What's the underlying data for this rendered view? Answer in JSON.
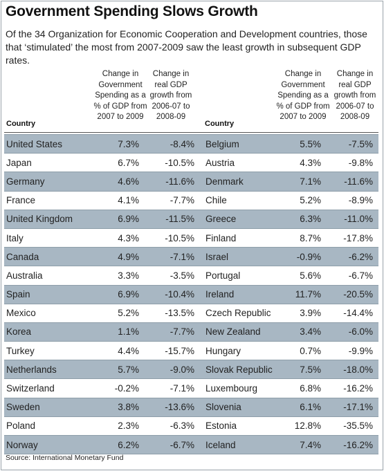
{
  "title": "Government Spending Slows Growth",
  "subtitle": "Of the 34 Organization for Economic Cooperation and Development countries, those that ‘stimulated’ the most from 2007-2009 saw the least growth in subsequent GDP rates.",
  "columns": {
    "country": "Country",
    "spending_lines": [
      "Change in",
      "Government",
      "Spending as a",
      "% of GDP from",
      "2007 to 2009"
    ],
    "gdp_lines": [
      "Change in",
      "real GDP",
      "growth from",
      "2006-07 to",
      "2008-09"
    ]
  },
  "source": "Source: International Monetary Fund",
  "chart_data": {
    "type": "table",
    "title": "Government Spending Slows Growth",
    "columns": [
      "Country",
      "Change in Government Spending as a % of GDP from 2007 to 2009",
      "Change in real GDP growth from 2006-07 to 2008-09"
    ],
    "left": [
      {
        "country": "United States",
        "spending": "7.3%",
        "gdp": "-8.4%"
      },
      {
        "country": "Japan",
        "spending": "6.7%",
        "gdp": "-10.5%"
      },
      {
        "country": "Germany",
        "spending": "4.6%",
        "gdp": "-11.6%"
      },
      {
        "country": "France",
        "spending": "4.1%",
        "gdp": "-7.7%"
      },
      {
        "country": "United Kingdom",
        "spending": "6.9%",
        "gdp": "-11.5%"
      },
      {
        "country": "Italy",
        "spending": "4.3%",
        "gdp": "-10.5%"
      },
      {
        "country": "Canada",
        "spending": "4.9%",
        "gdp": "-7.1%"
      },
      {
        "country": "Australia",
        "spending": "3.3%",
        "gdp": "-3.5%"
      },
      {
        "country": "Spain",
        "spending": "6.9%",
        "gdp": "-10.4%"
      },
      {
        "country": "Mexico",
        "spending": "5.2%",
        "gdp": "-13.5%"
      },
      {
        "country": "Korea",
        "spending": "1.1%",
        "gdp": "-7.7%"
      },
      {
        "country": "Turkey",
        "spending": "4.4%",
        "gdp": "-15.7%"
      },
      {
        "country": "Netherlands",
        "spending": "5.7%",
        "gdp": "-9.0%"
      },
      {
        "country": "Switzerland",
        "spending": "-0.2%",
        "gdp": "-7.1%"
      },
      {
        "country": "Sweden",
        "spending": "3.8%",
        "gdp": "-13.6%"
      },
      {
        "country": "Poland",
        "spending": "2.3%",
        "gdp": "-6.3%"
      },
      {
        "country": "Norway",
        "spending": "6.2%",
        "gdp": "-6.7%"
      }
    ],
    "right": [
      {
        "country": "Belgium",
        "spending": "5.5%",
        "gdp": "-7.5%"
      },
      {
        "country": "Austria",
        "spending": "4.3%",
        "gdp": "-9.8%"
      },
      {
        "country": "Denmark",
        "spending": "7.1%",
        "gdp": "-11.6%"
      },
      {
        "country": "Chile",
        "spending": "5.2%",
        "gdp": "-8.9%"
      },
      {
        "country": "Greece",
        "spending": "6.3%",
        "gdp": "-11.0%"
      },
      {
        "country": "Finland",
        "spending": "8.7%",
        "gdp": "-17.8%"
      },
      {
        "country": "Israel",
        "spending": "-0.9%",
        "gdp": "-6.2%"
      },
      {
        "country": "Portugal",
        "spending": "5.6%",
        "gdp": "-6.7%"
      },
      {
        "country": "Ireland",
        "spending": "11.7%",
        "gdp": "-20.5%"
      },
      {
        "country": "Czech Republic",
        "spending": "3.9%",
        "gdp": "-14.4%"
      },
      {
        "country": "New Zealand",
        "spending": "3.4%",
        "gdp": "-6.0%"
      },
      {
        "country": "Hungary",
        "spending": "0.7%",
        "gdp": "-9.9%"
      },
      {
        "country": "Slovak Republic",
        "spending": "7.5%",
        "gdp": "-18.0%"
      },
      {
        "country": "Luxembourg",
        "spending": "6.8%",
        "gdp": "-16.2%"
      },
      {
        "country": "Slovenia",
        "spending": "6.1%",
        "gdp": "-17.1%"
      },
      {
        "country": "Estonia",
        "spending": "12.8%",
        "gdp": "-35.5%"
      },
      {
        "country": "Iceland",
        "spending": "7.4%",
        "gdp": "-16.2%"
      }
    ],
    "row_shading_color": "#a8b7c3"
  }
}
